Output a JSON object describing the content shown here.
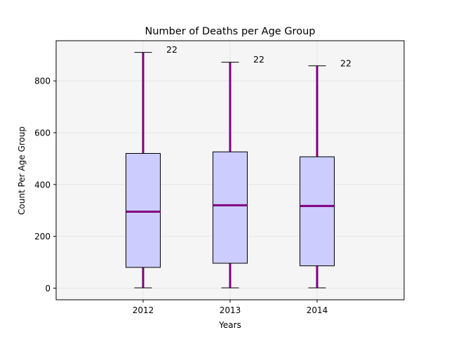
{
  "chart_data": {
    "type": "box",
    "title": "Number of Deaths per Age Group",
    "xlabel": "Years",
    "ylabel": "Count Per Age Group",
    "categories": [
      "2012",
      "2013",
      "2014"
    ],
    "ylim": [
      -45,
      955
    ],
    "yticks": [
      0,
      200,
      400,
      600,
      800
    ],
    "ytick_labels": [
      "0",
      "200",
      "400",
      "600",
      "800"
    ],
    "grid": true,
    "boxes": [
      {
        "category": "2012",
        "whisker_low": 1,
        "q1": 80,
        "median": 295,
        "q3": 520,
        "whisker_high": 910,
        "annotation": "22"
      },
      {
        "category": "2013",
        "whisker_low": 1,
        "q1": 96,
        "median": 320,
        "q3": 526,
        "whisker_high": 872,
        "annotation": "22"
      },
      {
        "category": "2014",
        "whisker_low": 1,
        "q1": 86,
        "median": 317,
        "q3": 507,
        "whisker_high": 858,
        "annotation": "22"
      }
    ],
    "colors": {
      "box_fill": "#ccccff",
      "box_edge": "#000000",
      "median": "#800080",
      "whisker": "#800080",
      "cap": "#000000",
      "plot_bg": "#f5f5f5",
      "grid": "#e2e2e2"
    }
  }
}
